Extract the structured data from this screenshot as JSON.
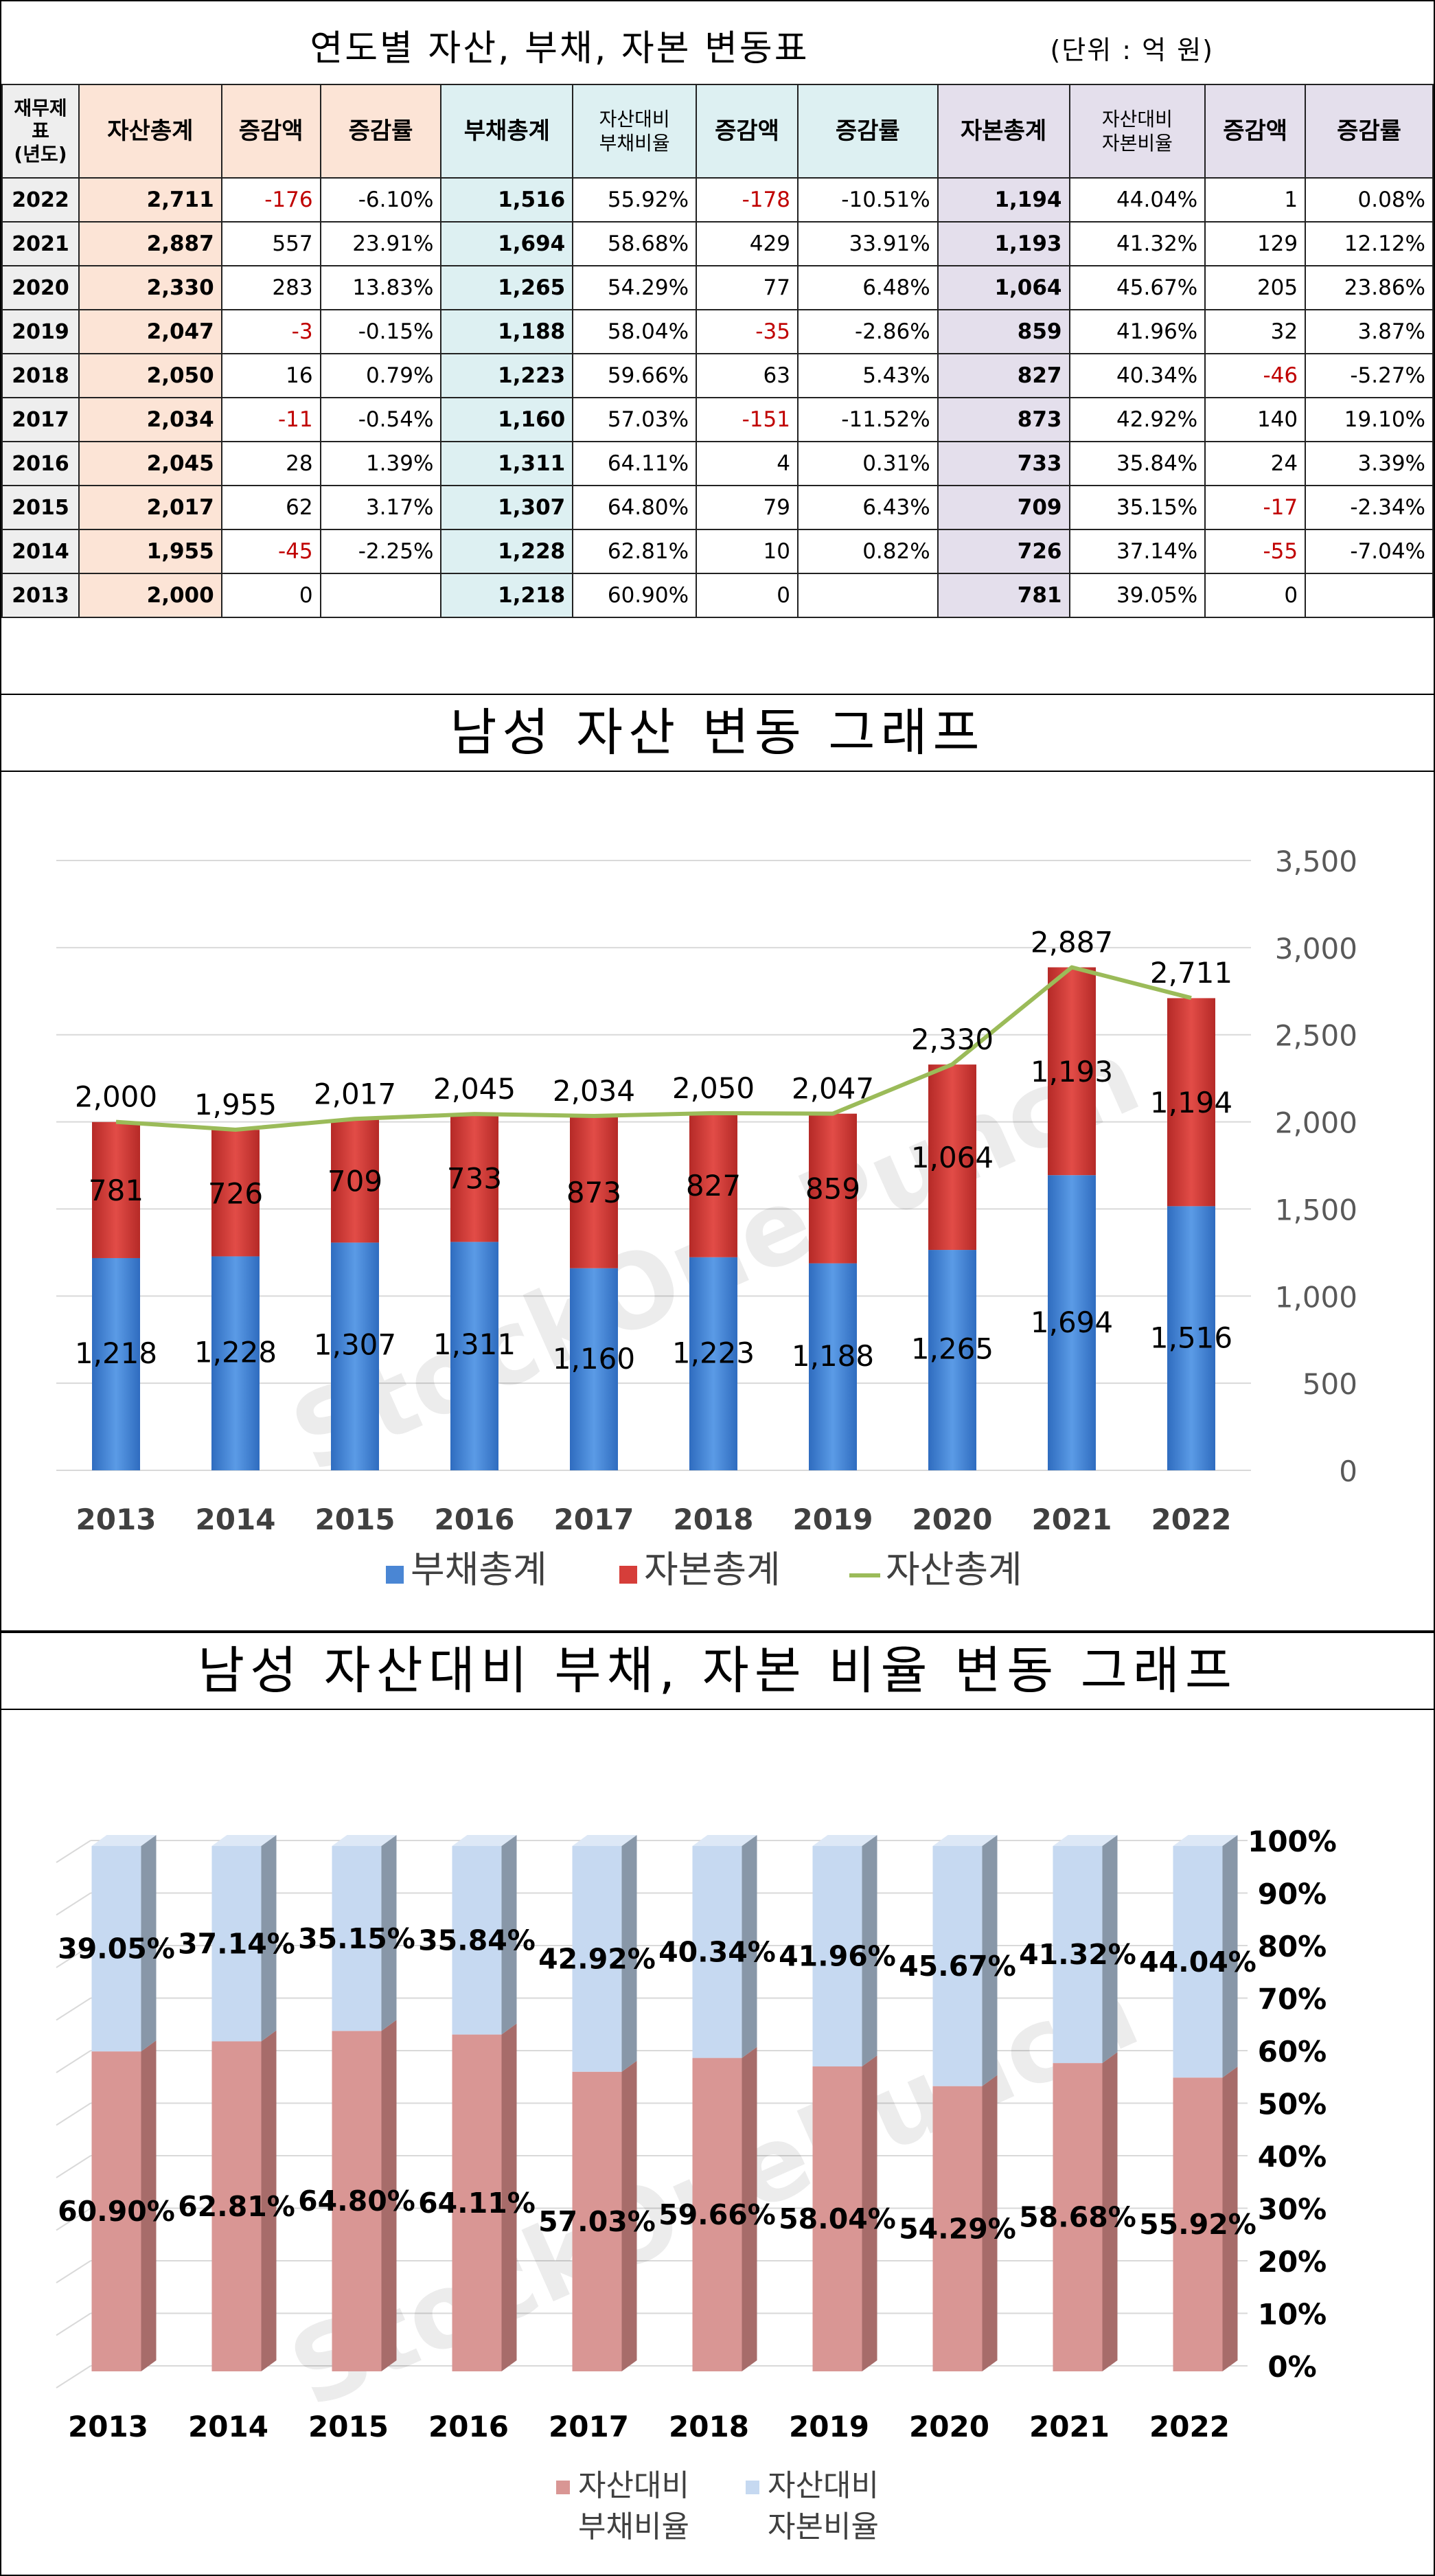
{
  "table": {
    "title": "연도별 자산, 부채, 자본 변동표",
    "unit": "(단위 : 억 원)",
    "headers": {
      "year": [
        "재무제",
        "표",
        "(년도)"
      ],
      "assets_total": "자산총계",
      "assets_change": "증감액",
      "assets_rate": "증감률",
      "debt_total": "부채총계",
      "debt_ratio": [
        "자산대비",
        "부채비율"
      ],
      "debt_change": "증감액",
      "debt_rate": "증감률",
      "capital_total": "자본총계",
      "capital_ratio": [
        "자산대비",
        "자본비율"
      ],
      "capital_change": "증감액",
      "capital_rate": "증감률"
    },
    "rows": [
      [
        "2022",
        "2,711",
        "-176",
        "-6.10%",
        "1,516",
        "55.92%",
        "-178",
        "-10.51%",
        "1,194",
        "44.04%",
        "1",
        "0.08%"
      ],
      [
        "2021",
        "2,887",
        "557",
        "23.91%",
        "1,694",
        "58.68%",
        "429",
        "33.91%",
        "1,193",
        "41.32%",
        "129",
        "12.12%"
      ],
      [
        "2020",
        "2,330",
        "283",
        "13.83%",
        "1,265",
        "54.29%",
        "77",
        "6.48%",
        "1,064",
        "45.67%",
        "205",
        "23.86%"
      ],
      [
        "2019",
        "2,047",
        "-3",
        "-0.15%",
        "1,188",
        "58.04%",
        "-35",
        "-2.86%",
        "859",
        "41.96%",
        "32",
        "3.87%"
      ],
      [
        "2018",
        "2,050",
        "16",
        "0.79%",
        "1,223",
        "59.66%",
        "63",
        "5.43%",
        "827",
        "40.34%",
        "-46",
        "-5.27%"
      ],
      [
        "2017",
        "2,034",
        "-11",
        "-0.54%",
        "1,160",
        "57.03%",
        "-151",
        "-11.52%",
        "873",
        "42.92%",
        "140",
        "19.10%"
      ],
      [
        "2016",
        "2,045",
        "28",
        "1.39%",
        "1,311",
        "64.11%",
        "4",
        "0.31%",
        "733",
        "35.84%",
        "24",
        "3.39%"
      ],
      [
        "2015",
        "2,017",
        "62",
        "3.17%",
        "1,307",
        "64.80%",
        "79",
        "6.43%",
        "709",
        "35.15%",
        "-17",
        "-2.34%"
      ],
      [
        "2014",
        "1,955",
        "-45",
        "-2.25%",
        "1,228",
        "62.81%",
        "10",
        "0.82%",
        "726",
        "37.14%",
        "-55",
        "-7.04%"
      ],
      [
        "2013",
        "2,000",
        "0",
        "",
        "1,218",
        "60.90%",
        "0",
        "",
        "781",
        "39.05%",
        "0",
        ""
      ]
    ]
  },
  "chart_data": [
    {
      "type": "bar",
      "stacked": true,
      "title": "남성 자산 변동 그래프",
      "categories": [
        "2013",
        "2014",
        "2015",
        "2016",
        "2017",
        "2018",
        "2019",
        "2020",
        "2021",
        "2022"
      ],
      "series": [
        {
          "name": "부채총계",
          "type": "bar",
          "color": "#4a86d4",
          "values": [
            1218,
            1228,
            1307,
            1311,
            1160,
            1223,
            1188,
            1265,
            1694,
            1516
          ]
        },
        {
          "name": "자본총계",
          "type": "bar",
          "color": "#d63e3a",
          "values": [
            781,
            726,
            709,
            733,
            873,
            827,
            859,
            1064,
            1193,
            1194
          ]
        },
        {
          "name": "자산총계",
          "type": "line",
          "color": "#9bbb59",
          "values": [
            2000,
            1955,
            2017,
            2045,
            2034,
            2050,
            2047,
            2330,
            2887,
            2711
          ]
        }
      ],
      "ylim": [
        0,
        3500
      ],
      "yticks": [
        "0",
        "500",
        "1,000",
        "1,500",
        "2,000",
        "2,500",
        "3,000",
        "3,500"
      ],
      "grid": true,
      "legend": "bottom",
      "watermark": "StockOnePunch"
    },
    {
      "type": "bar",
      "stacked": true,
      "percent": true,
      "title": "남성 자산대비 부채, 자본 비율 변동 그래프",
      "categories": [
        "2013",
        "2014",
        "2015",
        "2016",
        "2017",
        "2018",
        "2019",
        "2020",
        "2021",
        "2022"
      ],
      "series": [
        {
          "name": "자산대비 부채비율",
          "legend_lines": [
            "자산대비",
            "부채비율"
          ],
          "color": "#d99694",
          "values": [
            60.9,
            62.81,
            64.8,
            64.11,
            57.03,
            59.66,
            58.04,
            54.29,
            58.68,
            55.92
          ]
        },
        {
          "name": "자산대비 자본비율",
          "legend_lines": [
            "자산대비",
            "자본비율"
          ],
          "color": "#c6d9f1",
          "values": [
            39.05,
            37.14,
            35.15,
            35.84,
            42.92,
            40.34,
            41.96,
            45.67,
            41.32,
            44.04
          ]
        }
      ],
      "labels": {
        "debt": [
          "60.90%",
          "62.81%",
          "64.80%",
          "64.11%",
          "57.03%",
          "59.66%",
          "58.04%",
          "54.29%",
          "58.68%",
          "55.92%"
        ],
        "capital": [
          "39.05%",
          "37.14%",
          "35.15%",
          "35.84%",
          "42.92%",
          "40.34%",
          "41.96%",
          "45.67%",
          "41.32%",
          "44.04%"
        ]
      },
      "ylim": [
        0,
        100
      ],
      "yticks": [
        "0%",
        "10%",
        "20%",
        "30%",
        "40%",
        "50%",
        "60%",
        "70%",
        "80%",
        "90%",
        "100%"
      ],
      "grid": true,
      "legend": "bottom",
      "watermark": "StockOnePunch"
    }
  ]
}
